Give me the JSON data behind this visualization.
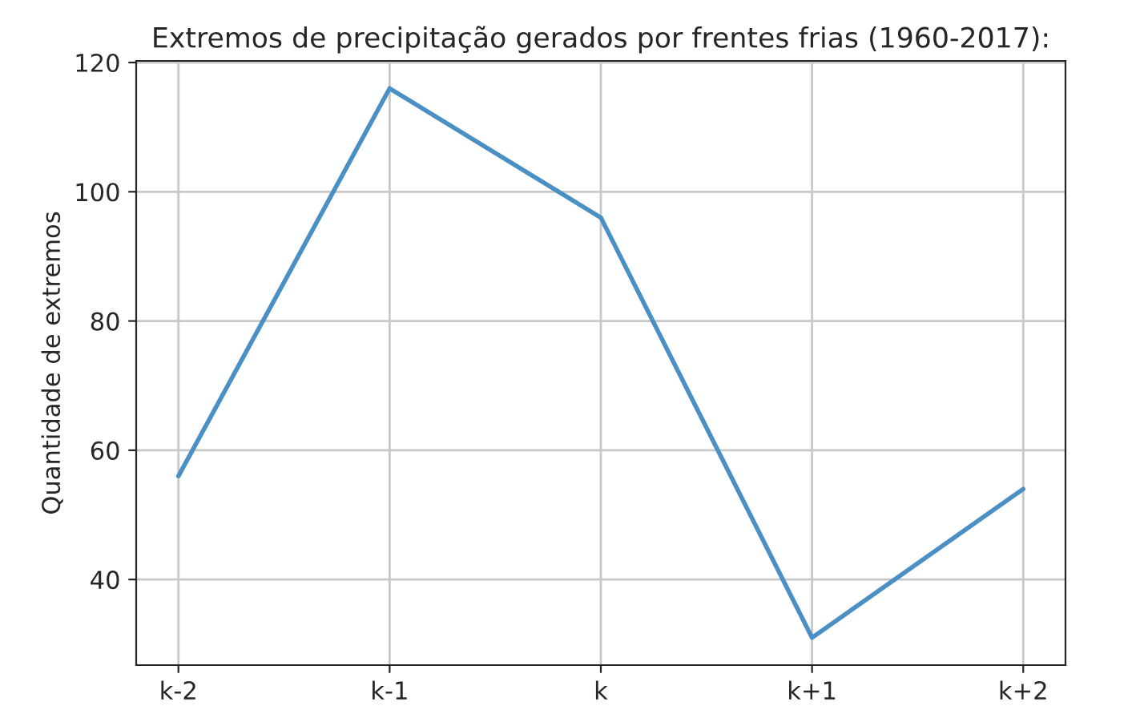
{
  "chart_data": {
    "type": "line",
    "title": "Extremos de precipitação gerados por frentes frias (1960-2017):",
    "ylabel": "Quantidade de extremos",
    "categories": [
      "k-2",
      "k-1",
      "k",
      "k+1",
      "k+2"
    ],
    "series": [
      {
        "color": "#4a90c4",
        "values": [
          56,
          116,
          96,
          31,
          54
        ]
      }
    ],
    "ylim": [
      26.75,
      120.25
    ],
    "yticks": [
      40,
      60,
      80,
      100,
      120
    ],
    "grid": true,
    "legend": false,
    "marker": "none",
    "line_style": "solid"
  }
}
